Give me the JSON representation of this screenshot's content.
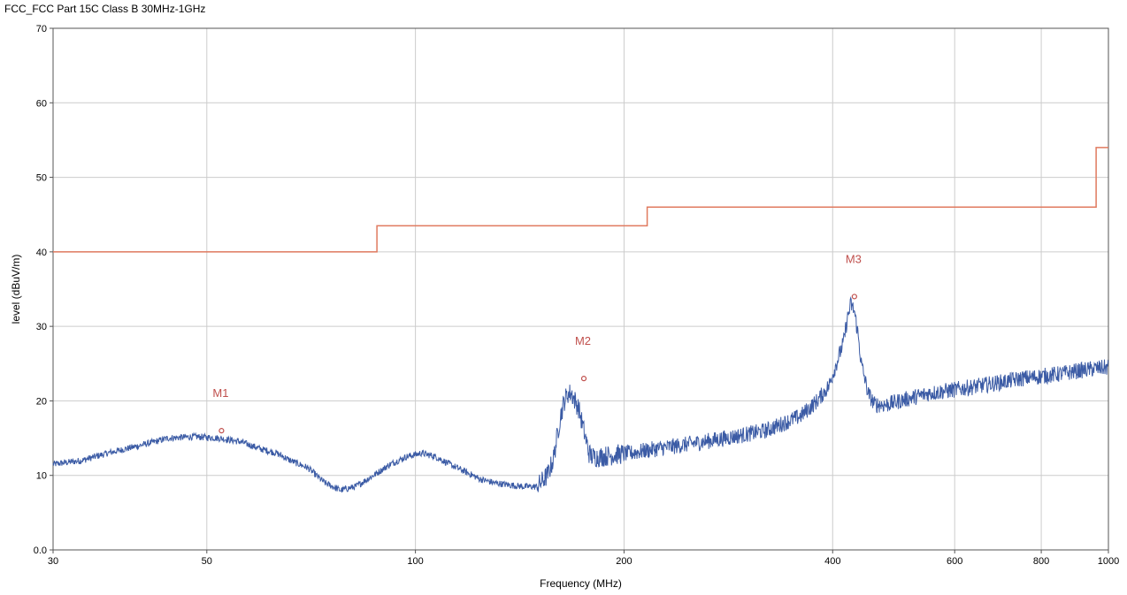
{
  "chart_data": {
    "type": "line",
    "title": "FCC_FCC Part 15C  Class B 30MHz-1GHz",
    "xlabel": "Frequency (MHz)",
    "ylabel": "level (dBuV/m)",
    "x_scale": "log",
    "xlim": [
      30,
      1000
    ],
    "ylim": [
      0,
      70
    ],
    "x_ticks": [
      30,
      50,
      100,
      200,
      400,
      600,
      800,
      1000
    ],
    "x_tick_labels": [
      "30",
      "50",
      "100",
      "200",
      "400",
      "600",
      "800",
      "1000"
    ],
    "y_ticks": [
      0,
      10,
      20,
      30,
      40,
      50,
      60,
      70
    ],
    "y_tick_labels": [
      "0.0",
      "10",
      "20",
      "30",
      "40",
      "50",
      "60",
      "70"
    ],
    "grid": true,
    "colors": {
      "limit": "#e07a5f",
      "trace": "#3b5ba5",
      "marker": "#c0504d",
      "grid": "#cccccc"
    },
    "series": [
      {
        "role": "limit",
        "x": [
          30,
          88,
          88,
          216,
          216,
          960,
          960,
          1000
        ],
        "y": [
          40,
          40,
          43.5,
          43.5,
          46,
          46,
          54,
          54
        ]
      },
      {
        "role": "trace",
        "x": [
          30,
          33,
          36,
          40,
          44,
          48,
          52,
          56,
          60,
          63,
          66,
          70,
          74,
          78,
          82,
          87,
          92,
          97,
          102,
          107,
          112,
          118,
          124,
          130,
          137,
          143,
          150,
          155,
          158,
          160,
          162,
          164,
          166,
          168,
          170,
          172,
          174,
          176,
          178,
          180,
          185,
          195,
          205,
          220,
          240,
          260,
          280,
          300,
          320,
          340,
          360,
          380,
          395,
          405,
          415,
          420,
          425,
          430,
          435,
          440,
          445,
          450,
          460,
          480,
          500,
          550,
          600,
          650,
          700,
          750,
          800,
          850,
          900,
          950,
          1000
        ],
        "y": [
          11.5,
          12,
          13,
          14,
          15,
          15.2,
          15,
          14.5,
          13.5,
          13,
          12,
          11,
          9,
          8,
          8.5,
          10,
          11.5,
          12.5,
          13,
          12.5,
          11.5,
          10.5,
          9.5,
          9,
          8.7,
          8.5,
          8.5,
          10,
          12,
          15,
          18,
          20,
          21,
          21,
          20,
          19,
          17,
          15,
          13,
          12.5,
          12.5,
          12.8,
          13,
          13.5,
          14,
          14.5,
          15,
          15.5,
          16,
          17,
          18,
          20,
          22,
          25,
          28,
          31,
          33,
          32,
          29,
          25,
          23,
          21,
          19.5,
          19.5,
          20,
          21,
          21.5,
          22,
          22.5,
          23,
          23.3,
          23.6,
          24,
          24.3,
          24.5
        ]
      }
    ],
    "markers": [
      {
        "label": "M1",
        "x": 52.5,
        "y": 16
      },
      {
        "label": "M2",
        "x": 175,
        "y": 23
      },
      {
        "label": "M3",
        "x": 430,
        "y": 34
      }
    ]
  }
}
